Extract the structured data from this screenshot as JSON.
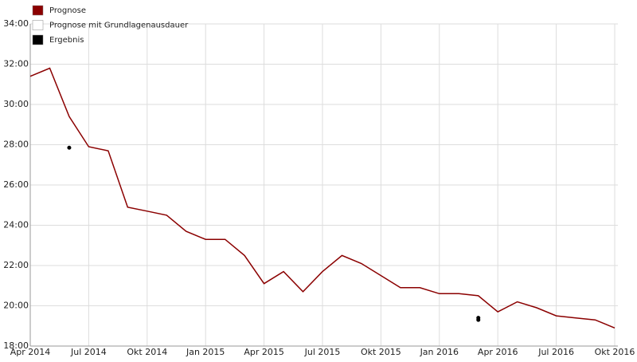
{
  "chart_data": {
    "type": "line",
    "x": [
      "2014-04",
      "2014-05",
      "2014-06",
      "2014-07",
      "2014-08",
      "2014-09",
      "2014-10",
      "2014-11",
      "2014-12",
      "2015-01",
      "2015-02",
      "2015-03",
      "2015-04",
      "2015-05",
      "2015-06",
      "2015-07",
      "2015-08",
      "2015-09",
      "2015-10",
      "2015-11",
      "2015-12",
      "2016-01",
      "2016-02",
      "2016-03",
      "2016-04",
      "2016-05",
      "2016-06",
      "2016-07",
      "2016-08",
      "2016-09",
      "2016-10"
    ],
    "series": [
      {
        "name": "Prognose",
        "color": "#8b0000",
        "type": "line",
        "values": [
          31.4,
          31.8,
          29.4,
          27.9,
          27.7,
          24.9,
          24.7,
          24.5,
          23.7,
          23.3,
          23.3,
          22.5,
          21.1,
          21.7,
          20.7,
          21.7,
          22.5,
          22.1,
          21.5,
          20.9,
          20.9,
          20.6,
          20.6,
          20.5,
          19.7,
          20.2,
          19.9,
          19.5,
          19.4,
          19.3,
          18.9
        ]
      },
      {
        "name": "Prognose mit Grundlagenausdauer",
        "color": "#ffffff",
        "type": "line",
        "values": [
          null,
          null,
          null,
          null,
          null,
          null,
          null,
          null,
          null,
          null,
          null,
          null,
          null,
          null,
          null,
          null,
          null,
          null,
          null,
          null,
          null,
          null,
          null,
          null,
          null,
          null,
          null,
          null,
          null,
          null,
          null
        ]
      },
      {
        "name": "Ergebnis",
        "color": "#000000",
        "type": "scatter",
        "x": [
          "2014-06",
          "2016-03",
          "2016-03"
        ],
        "values": [
          27.85,
          19.4,
          19.3
        ]
      }
    ],
    "xlim": [
      "2014-04",
      "2016-10"
    ],
    "xticks": [
      {
        "value": "2014-04",
        "label": "Apr 2014"
      },
      {
        "value": "2014-07",
        "label": "Jul 2014"
      },
      {
        "value": "2014-10",
        "label": "Okt 2014"
      },
      {
        "value": "2015-01",
        "label": "Jan 2015"
      },
      {
        "value": "2015-04",
        "label": "Apr 2015"
      },
      {
        "value": "2015-07",
        "label": "Jul 2015"
      },
      {
        "value": "2015-10",
        "label": "Okt 2015"
      },
      {
        "value": "2016-01",
        "label": "Jan 2016"
      },
      {
        "value": "2016-04",
        "label": "Apr 2016"
      },
      {
        "value": "2016-07",
        "label": "Jul 2016"
      },
      {
        "value": "2016-10",
        "label": "Okt 2016"
      }
    ],
    "ylim": [
      18,
      34
    ],
    "yticks": [
      {
        "value": 18,
        "label": "18:00"
      },
      {
        "value": 20,
        "label": "20:00"
      },
      {
        "value": 22,
        "label": "22:00"
      },
      {
        "value": 24,
        "label": "24:00"
      },
      {
        "value": 26,
        "label": "26:00"
      },
      {
        "value": 28,
        "label": "28:00"
      },
      {
        "value": 30,
        "label": "30:00"
      },
      {
        "value": 32,
        "label": "32:00"
      },
      {
        "value": 34,
        "label": "34:00"
      }
    ],
    "grid": true
  }
}
